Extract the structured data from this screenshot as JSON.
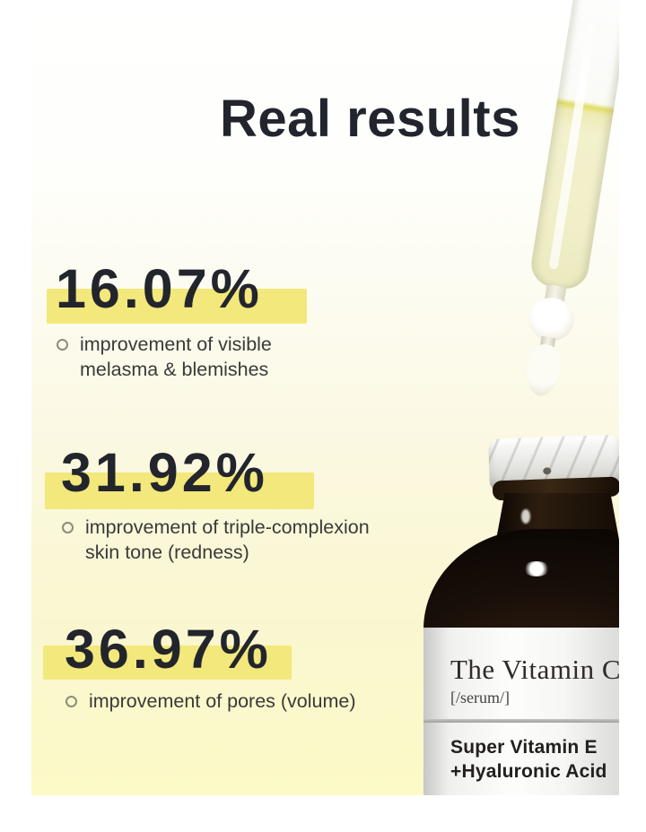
{
  "title": "Real results",
  "stats": [
    {
      "value": "16.07%",
      "desc_line1": "improvement of visible",
      "desc_line2": "melasma & blemishes"
    },
    {
      "value": "31.92%",
      "desc_line1": "improvement of triple-complexion",
      "desc_line2": "skin tone (redness)"
    },
    {
      "value": "36.97%",
      "desc_line1": "improvement of pores (volume)",
      "desc_line2": ""
    }
  ],
  "bottle": {
    "label_title": "The Vitamin C",
    "label_subtitle": "[/serum/]",
    "label_line1": "Super Vitamin E",
    "label_line2": "+Hyaluronic Acid"
  },
  "colors": {
    "highlight_yellow": "#f2e87c",
    "background_bottom_yellow": "#fbf8ca",
    "headline_dark": "#22242e",
    "body_text": "#3a3a3a",
    "serum_liquid": "#f3f1cd",
    "bottle_glass": "#160e08"
  }
}
